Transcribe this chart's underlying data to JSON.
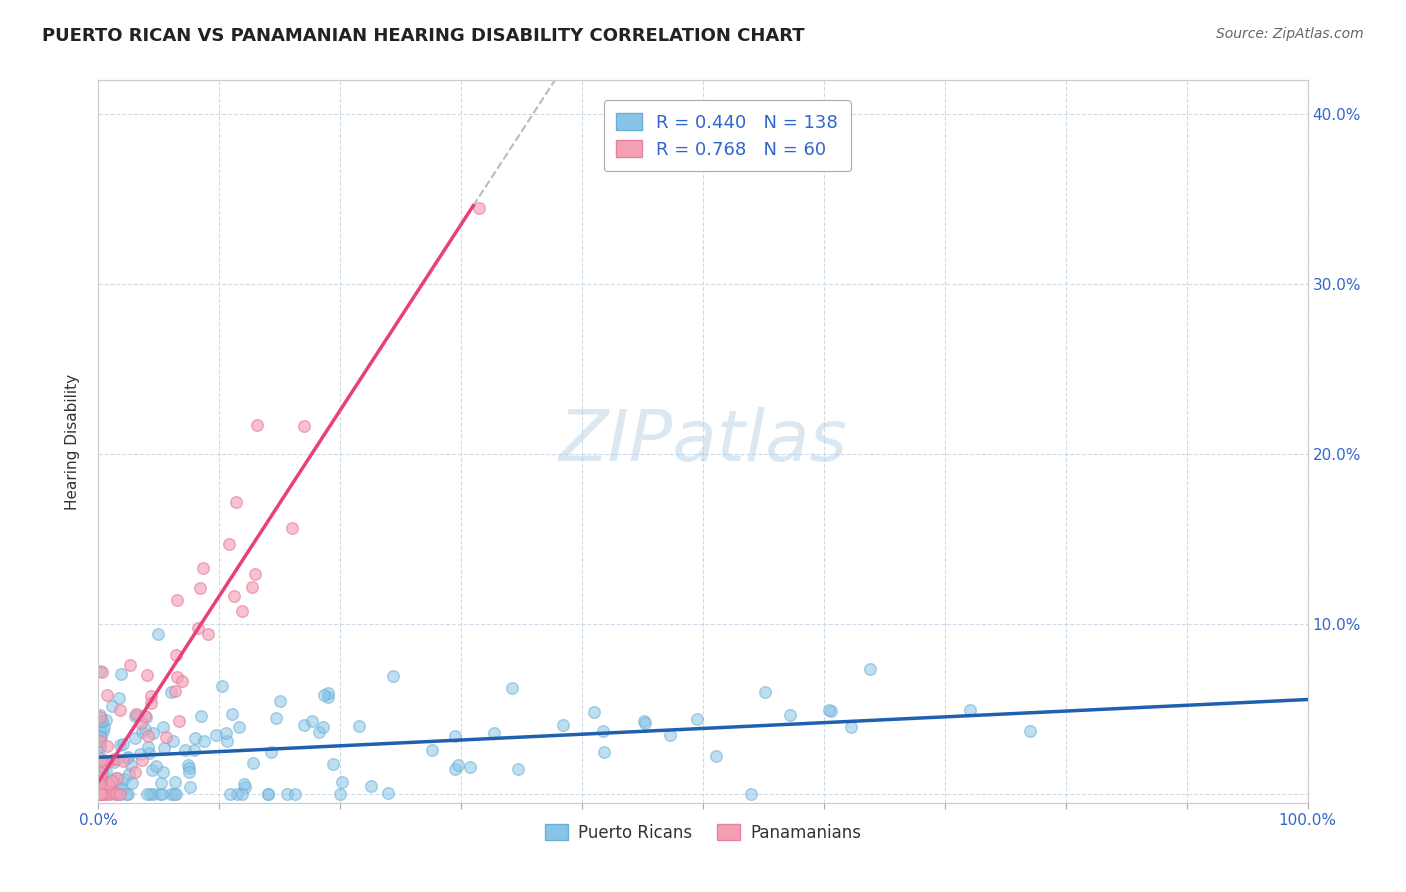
{
  "title": "PUERTO RICAN VS PANAMANIAN HEARING DISABILITY CORRELATION CHART",
  "source": "Source: ZipAtlas.com",
  "ylabel": "Hearing Disability",
  "xlim": [
    0,
    1.0
  ],
  "ylim": [
    -0.005,
    0.42
  ],
  "x_tick_positions": [
    0,
    0.1,
    0.2,
    0.3,
    0.4,
    0.5,
    0.6,
    0.7,
    0.8,
    0.9,
    1.0
  ],
  "x_tick_labels": [
    "0.0%",
    "",
    "",
    "",
    "",
    "",
    "",
    "",
    "",
    "",
    "100.0%"
  ],
  "y_tick_positions": [
    0.0,
    0.1,
    0.2,
    0.3,
    0.4
  ],
  "y_tick_labels_right": [
    "",
    "10.0%",
    "20.0%",
    "30.0%",
    "40.0%"
  ],
  "blue_R": 0.44,
  "blue_N": 138,
  "pink_R": 0.768,
  "pink_N": 60,
  "blue_color": "#89C4E8",
  "pink_color": "#F4A0B4",
  "blue_edge_color": "#6AAED4",
  "pink_edge_color": "#E880A0",
  "blue_line_color": "#2060B0",
  "pink_line_color": "#E8407A",
  "trendline_dash_color": "#BBBBBB",
  "background_color": "#FFFFFF",
  "grid_color": "#C8D8E8",
  "watermark": "ZIPatlas",
  "legend_text_color": "#3366CC",
  "title_color": "#222222",
  "source_color": "#666666",
  "ylabel_color": "#333333",
  "tick_color": "#3366CC"
}
